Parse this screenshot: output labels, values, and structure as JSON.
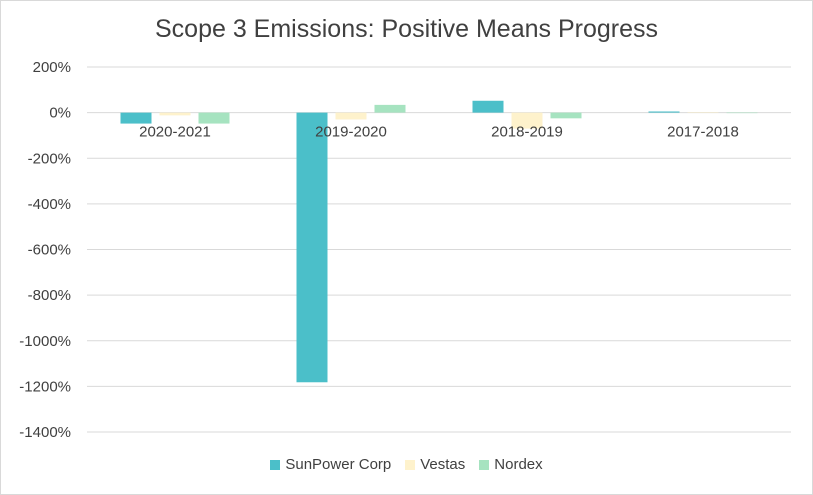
{
  "chart_data": {
    "type": "bar",
    "title": "Scope 3 Emissions: Positive Means Progress",
    "xlabel": "",
    "ylabel": "",
    "categories": [
      "2020-2021",
      "2019-2020",
      "2018-2019",
      "2017-2018"
    ],
    "series": [
      {
        "name": "SunPower Corp",
        "color": "#4bbfc9",
        "values": [
          -48,
          -1182,
          52,
          5
        ]
      },
      {
        "name": "Vestas",
        "color": "#fef2cc",
        "values": [
          -12,
          -30,
          -70,
          2
        ]
      },
      {
        "name": "Nordex",
        "color": "#a6e3c0",
        "values": [
          -48,
          34,
          -25,
          0
        ]
      }
    ],
    "ylim": [
      -1400,
      200
    ],
    "yticks": [
      200,
      0,
      -200,
      -400,
      -600,
      -800,
      -1000,
      -1200,
      -1400
    ],
    "ytick_labels": [
      "200%",
      "0%",
      "-200%",
      "-400%",
      "-600%",
      "-800%",
      "-1000%",
      "-1200%",
      "-1400%"
    ],
    "grid": true,
    "legend_position": "bottom"
  }
}
